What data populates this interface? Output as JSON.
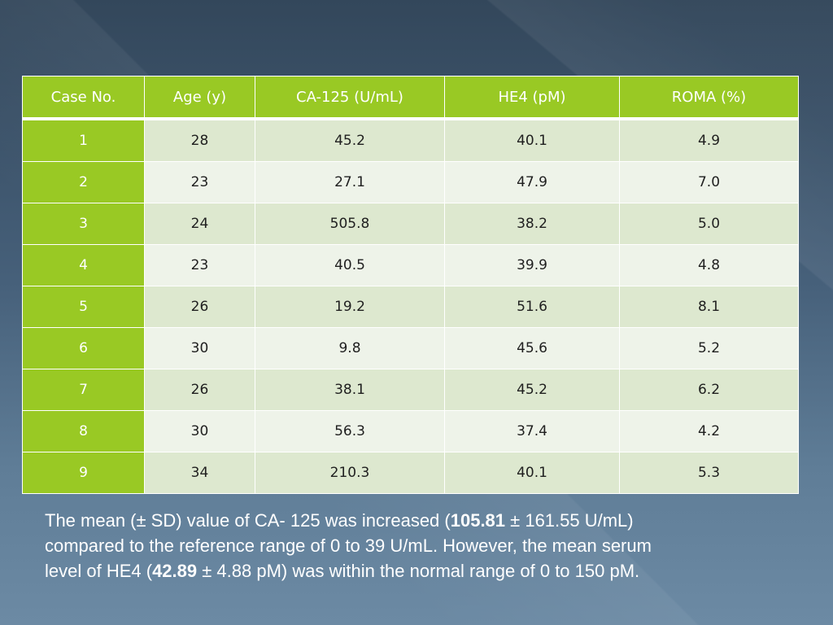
{
  "table": {
    "headers": [
      "Case No.",
      "Age (y)",
      "CA-125 (U/mL)",
      "HE4 (pM)",
      "ROMA (%)"
    ],
    "rows": [
      [
        "1",
        "28",
        "45.2",
        "40.1",
        "4.9"
      ],
      [
        "2",
        "23",
        "27.1",
        "47.9",
        "7.0"
      ],
      [
        "3",
        "24",
        "505.8",
        "38.2",
        "5.0"
      ],
      [
        "4",
        "23",
        "40.5",
        "39.9",
        "4.8"
      ],
      [
        "5",
        "26",
        "19.2",
        "51.6",
        "8.1"
      ],
      [
        "6",
        "30",
        "9.8",
        "45.6",
        "5.2"
      ],
      [
        "7",
        "26",
        "38.1",
        "45.2",
        "6.2"
      ],
      [
        "8",
        "30",
        "56.3",
        "37.4",
        "4.2"
      ],
      [
        "9",
        "34",
        "210.3",
        "40.1",
        "5.3"
      ]
    ]
  },
  "summary": {
    "line1_a": "The mean (± SD) value of CA- 125 was increased (",
    "ca125_mean": "105.81",
    "line1_b": " ± 161.55 U/mL)",
    "line2": "compared to the reference range of 0 to 39 U/mL. However, the mean serum",
    "line3_a": "level of HE4 (",
    "he4_mean": "42.89",
    "line3_b": " ± 4.88 pM) was within the normal range of 0 to 150 pM."
  },
  "colors": {
    "accent_green": "#99c924",
    "row_light": "#eef3e9",
    "row_dark": "#dde8cf",
    "background": "#46607a"
  }
}
